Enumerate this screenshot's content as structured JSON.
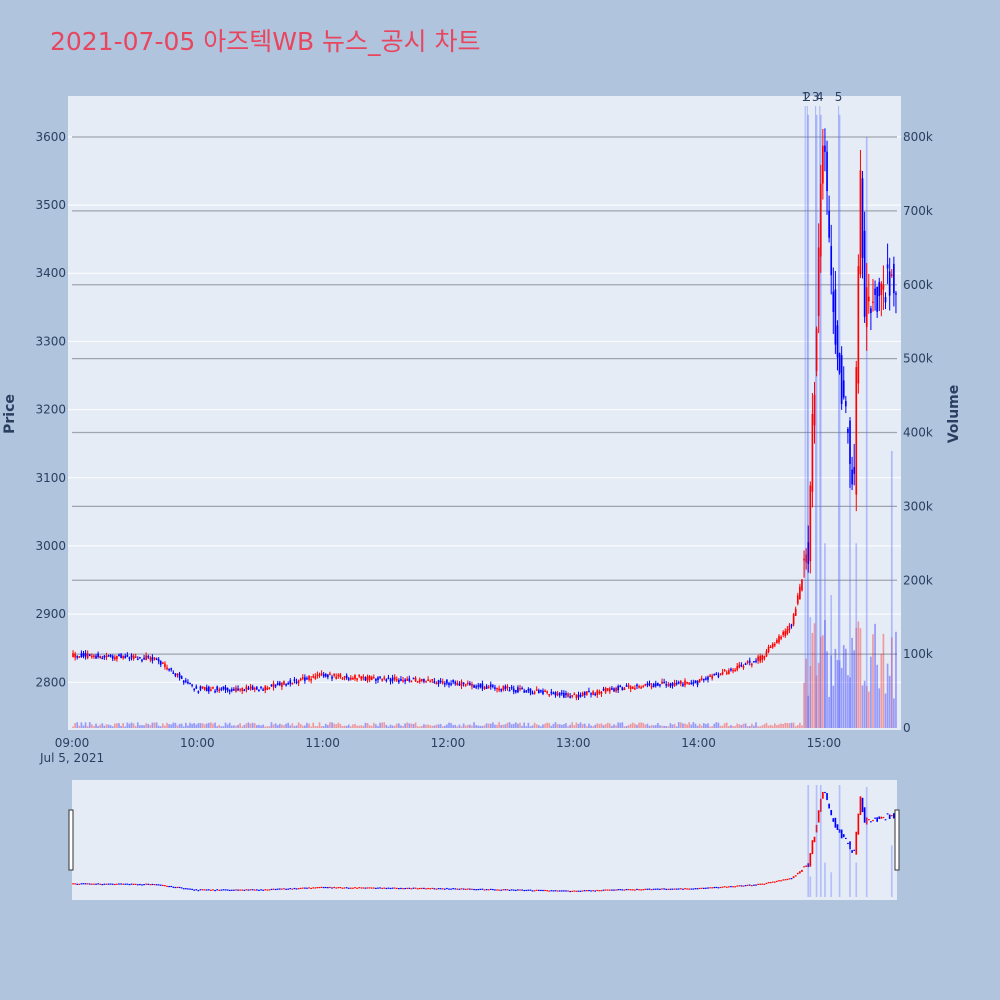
{
  "title": "2021-07-05 아즈텍WB 뉴스_공시 차트",
  "chart_data": {
    "type": "candlestick",
    "ylabel": "Price",
    "y2label": "Volume",
    "price_ticks": [
      2800,
      2900,
      3000,
      3100,
      3200,
      3300,
      3400,
      3500,
      3600
    ],
    "volume_ticks": [
      {
        "v": 0,
        "label": "0"
      },
      {
        "v": 100000,
        "label": "100k"
      },
      {
        "v": 200000,
        "label": "200k"
      },
      {
        "v": 300000,
        "label": "300k"
      },
      {
        "v": 400000,
        "label": "400k"
      },
      {
        "v": 500000,
        "label": "500k"
      },
      {
        "v": 600000,
        "label": "600k"
      },
      {
        "v": 700000,
        "label": "700k"
      },
      {
        "v": 800000,
        "label": "800k"
      }
    ],
    "x_ticks": [
      "09:00",
      "10:00",
      "11:00",
      "12:00",
      "13:00",
      "14:00",
      "15:00"
    ],
    "x_date_label": "Jul 5, 2021",
    "price_range": [
      2730,
      3660
    ],
    "volume_range": [
      0,
      800000
    ],
    "time_range": [
      "09:00",
      "15:35"
    ],
    "up_color": "#ff0000",
    "down_color": "#0000ff",
    "news_markers": [
      {
        "label": "1",
        "time": "14:52"
      },
      {
        "label": "2",
        "time": "14:53"
      },
      {
        "label": "3",
        "time": "14:57"
      },
      {
        "label": "4",
        "time": "14:59"
      },
      {
        "label": "5",
        "time": "15:08"
      }
    ],
    "key_points": [
      {
        "time": "09:00",
        "price": 2840
      },
      {
        "time": "09:40",
        "price": 2835
      },
      {
        "time": "10:00",
        "price": 2790
      },
      {
        "time": "10:30",
        "price": 2790
      },
      {
        "time": "11:00",
        "price": 2810
      },
      {
        "time": "12:00",
        "price": 2800
      },
      {
        "time": "13:00",
        "price": 2780
      },
      {
        "time": "13:30",
        "price": 2795
      },
      {
        "time": "14:00",
        "price": 2800
      },
      {
        "time": "14:30",
        "price": 2835
      },
      {
        "time": "14:45",
        "price": 2885
      },
      {
        "time": "14:53",
        "price": 2990
      },
      {
        "time": "15:00",
        "price": 3600
      },
      {
        "time": "15:05",
        "price": 3350
      },
      {
        "time": "15:10",
        "price": 3200
      },
      {
        "time": "15:15",
        "price": 3100
      },
      {
        "time": "15:18",
        "price": 3550
      },
      {
        "time": "15:20",
        "price": 3350
      },
      {
        "time": "15:30",
        "price": 3385
      }
    ],
    "volume_spikes": [
      {
        "time": "14:52",
        "volume": 830000
      },
      {
        "time": "14:53",
        "volume": 150000
      },
      {
        "time": "14:56",
        "volume": 830000
      },
      {
        "time": "14:58",
        "volume": 830000
      },
      {
        "time": "15:00",
        "volume": 250000
      },
      {
        "time": "15:03",
        "volume": 180000
      },
      {
        "time": "15:07",
        "volume": 830000
      },
      {
        "time": "15:12",
        "volume": 380000
      },
      {
        "time": "15:15",
        "volume": 250000
      },
      {
        "time": "15:20",
        "volume": 800000
      },
      {
        "time": "15:32",
        "volume": 375000
      }
    ]
  }
}
